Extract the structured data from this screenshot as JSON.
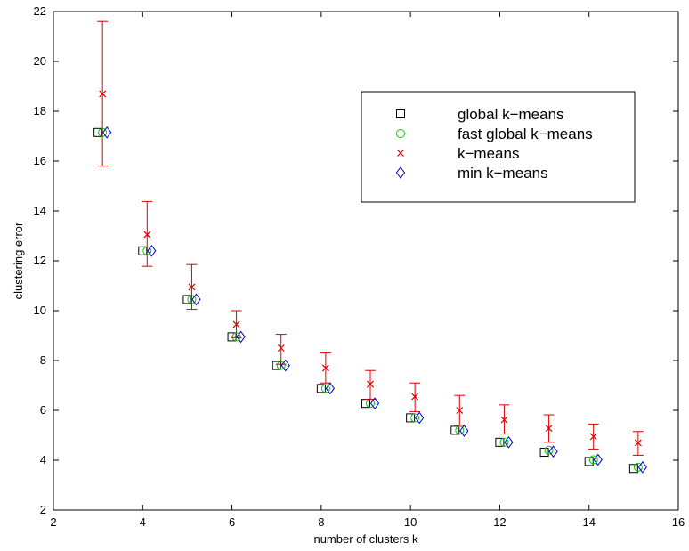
{
  "chart_data": {
    "type": "scatter",
    "title": "",
    "xlabel": "number of clusters k",
    "ylabel": "clustering error",
    "xlim": [
      2,
      16
    ],
    "ylim": [
      2,
      22
    ],
    "xticks": [
      2,
      4,
      6,
      8,
      10,
      12,
      14,
      16
    ],
    "yticks": [
      2,
      4,
      6,
      8,
      10,
      12,
      14,
      16,
      18,
      20,
      22
    ],
    "grid": false,
    "legend_position": "top-right",
    "series": [
      {
        "name": "global k−means",
        "marker": "square",
        "color": "#000000",
        "x": [
          3,
          4,
          5,
          6,
          7,
          8,
          9,
          10,
          11,
          12,
          13,
          14,
          15
        ],
        "y": [
          17.15,
          12.4,
          10.45,
          8.95,
          7.8,
          6.88,
          6.28,
          5.7,
          5.2,
          4.72,
          4.32,
          3.95,
          3.67
        ]
      },
      {
        "name": "fast global k−means",
        "marker": "circle",
        "color": "#00cc00",
        "x": [
          3.1,
          4.1,
          5.1,
          6.1,
          7.1,
          8.1,
          9.1,
          10.1,
          11.1,
          12.1,
          13.1,
          14.1,
          15.1
        ],
        "y": [
          17.15,
          12.4,
          10.45,
          8.95,
          7.8,
          6.88,
          6.28,
          5.7,
          5.2,
          4.72,
          4.4,
          4.02,
          3.72
        ]
      },
      {
        "name": "k−means",
        "marker": "x",
        "color": "#dd0000",
        "x": [
          3.1,
          4.1,
          5.1,
          6.1,
          7.1,
          8.1,
          9.1,
          10.1,
          11.1,
          12.1,
          13.1,
          14.1,
          15.1
        ],
        "y": [
          18.7,
          13.05,
          10.95,
          9.45,
          8.5,
          7.7,
          7.05,
          6.55,
          6.0,
          5.62,
          5.28,
          4.95,
          4.7
        ],
        "err_low": [
          15.8,
          11.78,
          10.05,
          8.92,
          7.85,
          7.1,
          6.45,
          5.95,
          5.4,
          5.05,
          4.72,
          4.45,
          4.2
        ],
        "err_high": [
          21.6,
          14.38,
          11.85,
          10.0,
          9.05,
          8.3,
          7.6,
          7.1,
          6.6,
          6.22,
          5.82,
          5.45,
          5.15
        ]
      },
      {
        "name": "min k−means",
        "marker": "diamond",
        "color": "#0000cc",
        "x": [
          3.2,
          4.2,
          5.2,
          6.2,
          7.2,
          8.2,
          9.2,
          10.2,
          11.2,
          12.2,
          13.2,
          14.2,
          15.2
        ],
        "y": [
          17.15,
          12.4,
          10.45,
          8.95,
          7.8,
          6.88,
          6.28,
          5.7,
          5.18,
          4.72,
          4.35,
          4.02,
          3.72
        ]
      }
    ]
  }
}
